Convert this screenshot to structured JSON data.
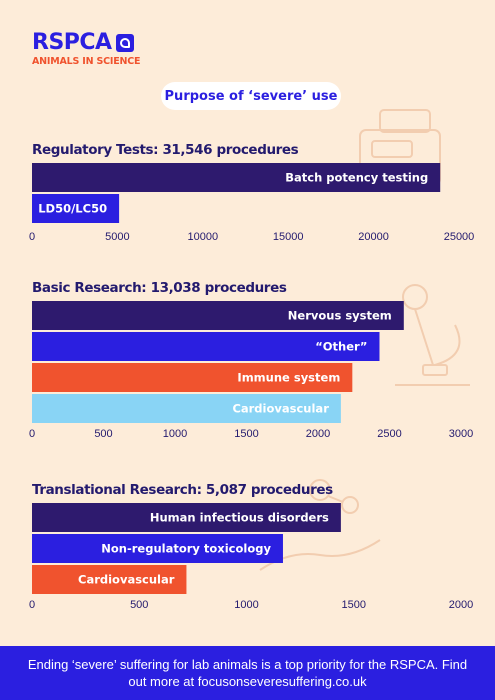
{
  "logo": {
    "main": "RSPCA",
    "sub": "ANIMALS IN SCIENCE"
  },
  "pill": "Purpose of ‘severe’ use",
  "footer": "Ending ‘severe’ suffering for lab animals is a top priority for the RSPCA. Find out more at focusonseveresuffering.co.uk",
  "colors": {
    "dark": "#2e1a6e",
    "blue": "#2b1fe0",
    "orange": "#f0532e",
    "light": "#89d4f5",
    "background": "#fdecd9"
  },
  "chart_data": [
    {
      "type": "bar",
      "orientation": "horizontal",
      "title": "Regulatory Tests: 31,546 procedures",
      "categories": [
        "Batch potency testing",
        "LD50/LC50"
      ],
      "values": [
        23900,
        5100
      ],
      "colors": [
        "#2e1a6e",
        "#2b1fe0"
      ],
      "xlim": [
        0,
        25000
      ],
      "ticks": [
        0,
        5000,
        10000,
        15000,
        20000,
        25000
      ]
    },
    {
      "type": "bar",
      "orientation": "horizontal",
      "title": "Basic Research: 13,038 procedures",
      "categories": [
        "Nervous system",
        "“Other”",
        "Immune system",
        "Cardiovascular"
      ],
      "values": [
        2600,
        2430,
        2240,
        2160
      ],
      "colors": [
        "#2e1a6e",
        "#2b1fe0",
        "#f0532e",
        "#89d4f5"
      ],
      "xlim": [
        0,
        3000
      ],
      "ticks": [
        0,
        500,
        1000,
        1500,
        2000,
        2500,
        3000
      ]
    },
    {
      "type": "bar",
      "orientation": "horizontal",
      "title": "Translational Research: 5,087 procedures",
      "categories": [
        "Human infectious disorders",
        "Non-regulatory toxicology",
        "Cardiovascular"
      ],
      "values": [
        1440,
        1170,
        720
      ],
      "colors": [
        "#2e1a6e",
        "#2b1fe0",
        "#f0532e"
      ],
      "xlim": [
        0,
        2000
      ],
      "ticks": [
        0,
        500,
        1000,
        1500,
        2000
      ]
    }
  ]
}
